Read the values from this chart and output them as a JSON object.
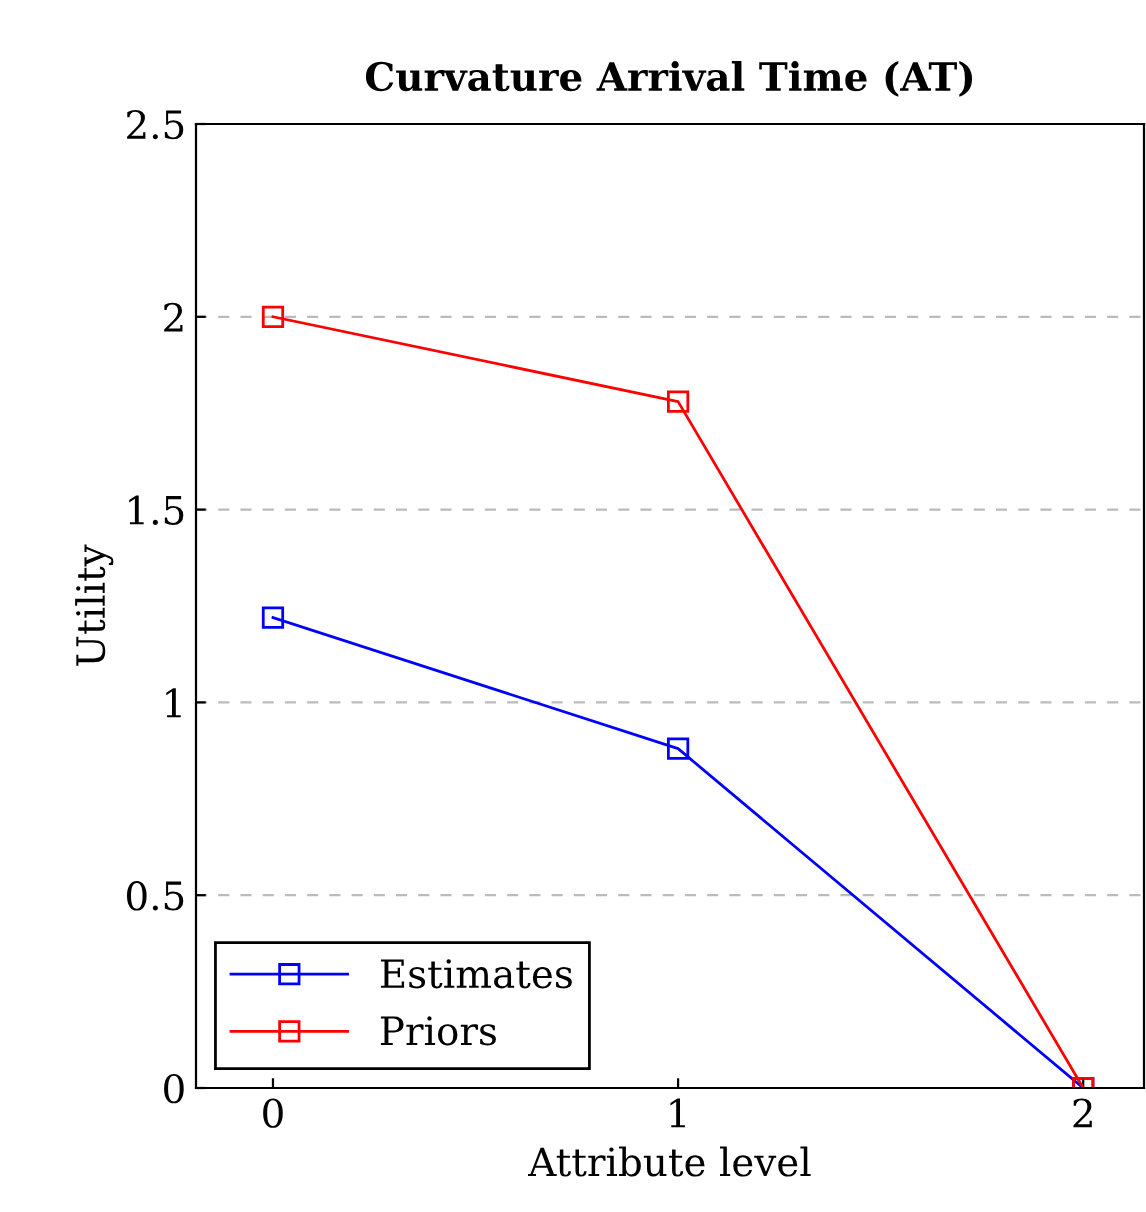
{
  "chart_data": {
    "type": "line",
    "title": "Curvature Arrival Time (AT)",
    "xlabel": "Attribute level",
    "ylabel": "Utility",
    "x": [
      0,
      1,
      2
    ],
    "series": [
      {
        "name": "Estimates",
        "color": "#0000ff",
        "values": [
          1.22,
          0.88,
          0
        ]
      },
      {
        "name": "Priors",
        "color": "#ff0000",
        "values": [
          2.0,
          1.78,
          0
        ]
      }
    ],
    "xlim": [
      -0.19,
      2.15
    ],
    "xticks": [
      0,
      1,
      2
    ],
    "ylim": [
      0,
      2.5
    ],
    "yticks": [
      0,
      0.5,
      1,
      1.5,
      2,
      2.5
    ],
    "grid": "y",
    "legend": "bottom left",
    "marker": "square",
    "line_style": "solid"
  }
}
